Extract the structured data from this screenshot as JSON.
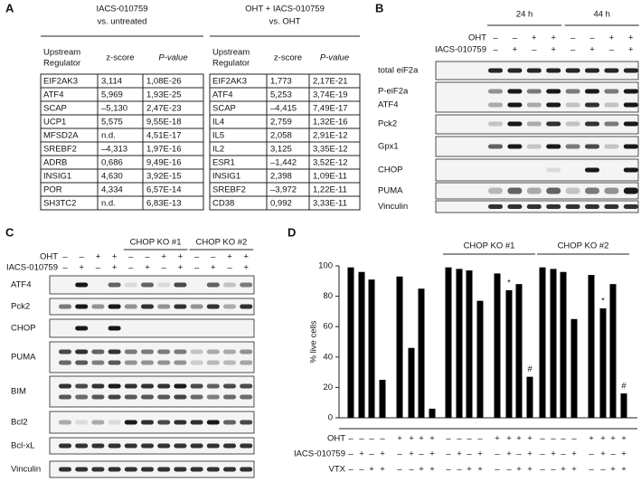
{
  "panel_a": {
    "label": "A",
    "tables": [
      {
        "title": [
          "IACS-010759",
          "vs. untreated"
        ],
        "headers": [
          [
            "Upstream",
            "Regulator"
          ],
          [
            "z-score"
          ],
          [
            "P-value"
          ]
        ],
        "rows": [
          [
            "EIF2AK3",
            "3,114",
            "1,08E-26"
          ],
          [
            "ATF4",
            "5,969",
            "1,93E-25"
          ],
          [
            "SCAP",
            "–5,130",
            "2,47E-23"
          ],
          [
            "UCP1",
            "5,575",
            "9,55E-18"
          ],
          [
            "MFSD2A",
            "n.d.",
            "4,51E-17"
          ],
          [
            "SREBF2",
            "–4,313",
            "1,97E-16"
          ],
          [
            "ADRB",
            "0,686",
            "9,49E-16"
          ],
          [
            "INSIG1",
            "4,630",
            "3,92E-15"
          ],
          [
            "POR",
            "4,334",
            "6,57E-14"
          ],
          [
            "SH3TC2",
            "n.d.",
            "6,83E-13"
          ]
        ]
      },
      {
        "title": [
          "OHT + IACS-010759",
          "vs. OHT"
        ],
        "headers": [
          [
            "Upstream",
            "Regulator"
          ],
          [
            "z-score"
          ],
          [
            "P-value"
          ]
        ],
        "rows": [
          [
            "EIF2AK3",
            "1,773",
            "2,17E-21"
          ],
          [
            "ATF4",
            "5,253",
            "3,74E-19"
          ],
          [
            "SCAP",
            "–4,415",
            "7,49E-17"
          ],
          [
            "IL4",
            "2,759",
            "1,32E-16"
          ],
          [
            "IL5",
            "2,058",
            "2,91E-12"
          ],
          [
            "IL2",
            "3,125",
            "3,35E-12"
          ],
          [
            "ESR1",
            "–1,442",
            "3,52E-12"
          ],
          [
            "INSIG1",
            "2,398",
            "1,09E-11"
          ],
          [
            "SREBF2",
            "–3,972",
            "1,22E-11"
          ],
          [
            "CD38",
            "0,992",
            "3,33E-11"
          ]
        ]
      }
    ]
  },
  "panel_b": {
    "label": "B",
    "timepoints": [
      "24 h",
      "44 h"
    ],
    "conditions": [
      {
        "name": "OHT",
        "signs": [
          "–",
          "–",
          "+",
          "+",
          "–",
          "–",
          "+",
          "+"
        ]
      },
      {
        "name": "IACS-010759",
        "signs": [
          "–",
          "+",
          "–",
          "+",
          "–",
          "+",
          "–",
          "+"
        ]
      }
    ],
    "blots": [
      "total eiF2a",
      "P-eiF2a",
      "ATF4",
      "Pck2",
      "Gpx1",
      "CHOP",
      "PUMA",
      "Vinculin"
    ]
  },
  "panel_c": {
    "label": "C",
    "groups": [
      "CHOP KO #1",
      "CHOP KO #2"
    ],
    "conditions": [
      {
        "name": "OHT",
        "signs": [
          "–",
          "–",
          "+",
          "+",
          "–",
          "–",
          "+",
          "+",
          "–",
          "–",
          "+",
          "+"
        ]
      },
      {
        "name": "IACS-010759",
        "signs": [
          "–",
          "+",
          "–",
          "+",
          "–",
          "+",
          "–",
          "+",
          "–",
          "+",
          "–",
          "+"
        ]
      }
    ],
    "blots": [
      "ATF4",
      "Pck2",
      "CHOP",
      "PUMA",
      "BIM",
      "Bcl2",
      "Bcl-xL",
      "Vinculin"
    ]
  },
  "chart_data": {
    "type": "bar",
    "panel_label": "D",
    "ylabel": "% live cells",
    "groups": [
      "CHOP KO #1",
      "CHOP KO #2"
    ],
    "values": [
      99,
      96,
      91,
      25,
      93,
      46,
      85,
      6,
      99,
      98,
      97,
      77,
      95,
      84,
      88,
      27,
      99,
      98,
      96,
      65,
      94,
      72,
      88,
      16
    ],
    "annotations": [
      null,
      null,
      null,
      null,
      null,
      null,
      null,
      null,
      null,
      null,
      null,
      null,
      null,
      "*",
      null,
      "#",
      null,
      null,
      null,
      null,
      null,
      "*",
      null,
      "#"
    ],
    "color": "#000000",
    "ylim": [
      0,
      100
    ],
    "yticks": [
      0,
      20,
      40,
      60,
      80,
      100
    ],
    "conditions": [
      {
        "name": "OHT",
        "signs": [
          "–",
          "–",
          "–",
          "–",
          "+",
          "+",
          "+",
          "+",
          "–",
          "–",
          "–",
          "–",
          "+",
          "+",
          "+",
          "+",
          "–",
          "–",
          "–",
          "–",
          "+",
          "+",
          "+",
          "+"
        ]
      },
      {
        "name": "IACS-010759",
        "signs": [
          "–",
          "+",
          "–",
          "+",
          "–",
          "+",
          "–",
          "+",
          "–",
          "+",
          "–",
          "+",
          "–",
          "+",
          "–",
          "+",
          "–",
          "+",
          "–",
          "+",
          "–",
          "+",
          "–",
          "+"
        ]
      },
      {
        "name": "VTX",
        "signs": [
          "–",
          "–",
          "+",
          "+",
          "–",
          "–",
          "+",
          "+",
          "–",
          "–",
          "+",
          "+",
          "–",
          "–",
          "+",
          "+",
          "–",
          "–",
          "+",
          "+",
          "–",
          "–",
          "+",
          "+"
        ]
      }
    ]
  }
}
